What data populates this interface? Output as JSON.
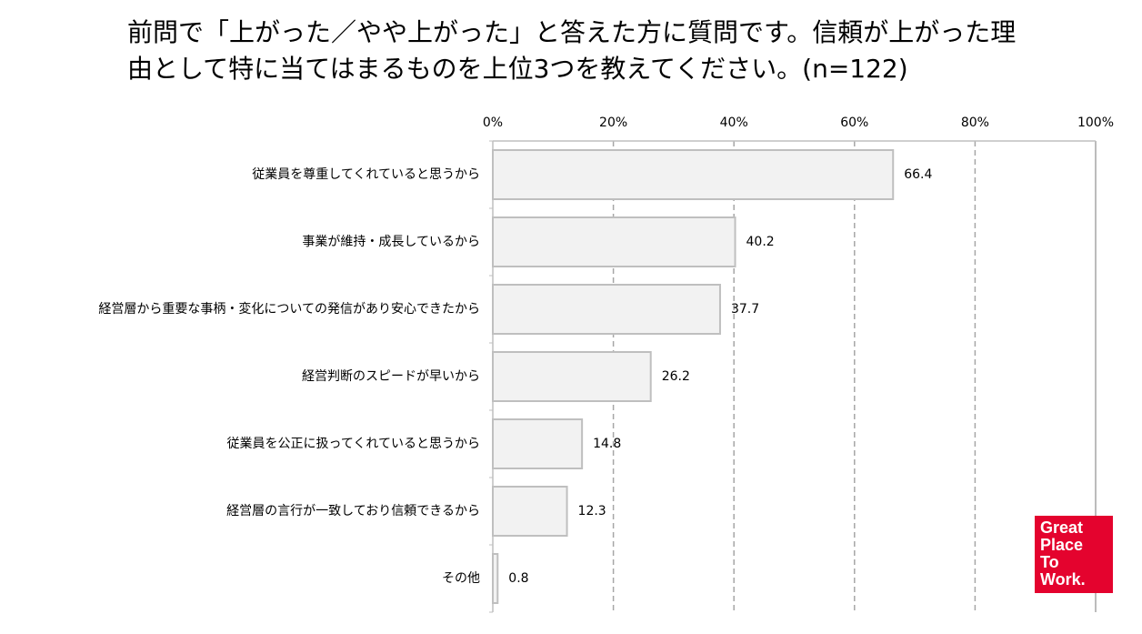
{
  "chart_data": {
    "type": "hbar",
    "title": "前問で「上がった／やや上がった」と答えた方に質問です。信頼が上がった理由として特に当てはまるものを上位3つを教えてください。(n=122)",
    "categories": [
      "従業員を尊重してくれていると思うから",
      "事業が維持・成長しているから",
      "経営層から重要な事柄・変化についての発信があり安心できたから",
      "経営判断のスピードが早いから",
      "従業員を公正に扱ってくれていると思うから",
      "経営層の言行が一致しており信頼できるから",
      "その他"
    ],
    "values": [
      66.4,
      40.2,
      37.7,
      26.2,
      14.8,
      12.3,
      0.8
    ],
    "color": "#f2f2f2",
    "xlim": [
      0,
      100
    ],
    "xticks": [
      {
        "value": 0,
        "label": "0%"
      },
      {
        "value": 20,
        "label": "20%"
      },
      {
        "value": 40,
        "label": "40%"
      },
      {
        "value": 60,
        "label": "60%"
      },
      {
        "value": 80,
        "label": "80%"
      },
      {
        "value": 100,
        "label": "100%"
      }
    ],
    "grid": true
  },
  "logo": {
    "lines": [
      "Great",
      "Place",
      "To",
      "Work."
    ]
  }
}
